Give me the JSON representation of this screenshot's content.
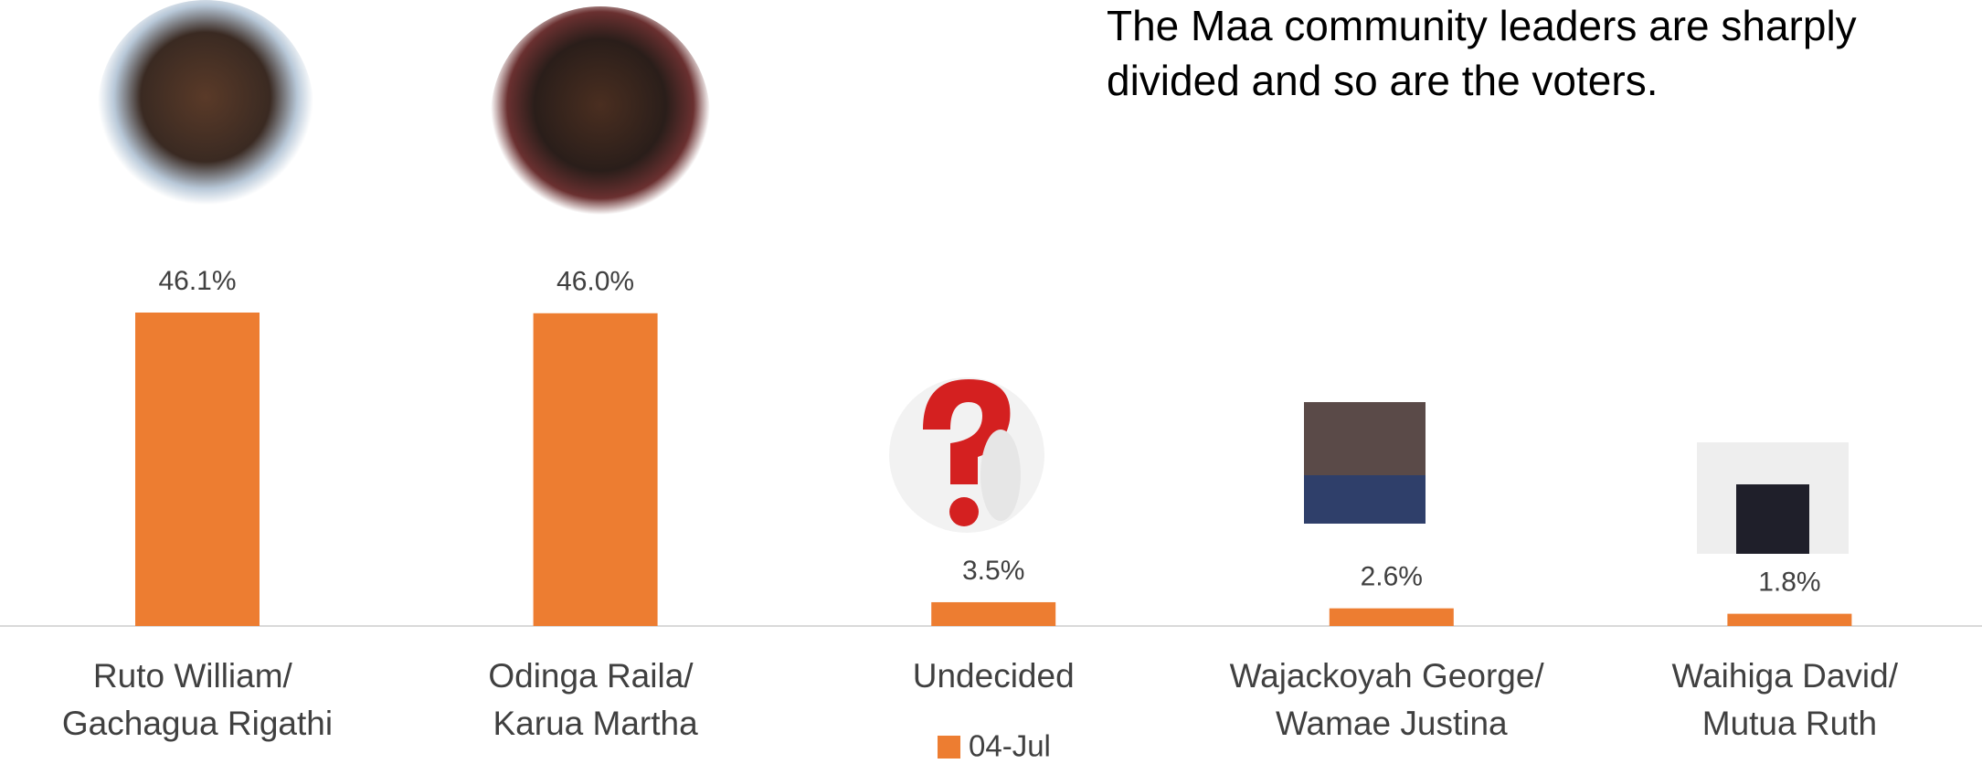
{
  "chart_data": {
    "type": "bar",
    "annotation": [
      "The Maa community leaders are sharply",
      "divided and so are the voters."
    ],
    "categories": [
      "Ruto William/ Gachagua Rigathi",
      "Odinga Raila/ Karua Martha",
      "Undecided",
      "Wajackoyah George/ Wamae Justina",
      "Waihiga David/ Mutua Ruth"
    ],
    "series": [
      {
        "name": "04-Jul",
        "color": "#ed7d31",
        "values": [
          46.1,
          46.0,
          3.5,
          2.6,
          1.8
        ],
        "value_labels": [
          "46.1%",
          "46.0%",
          "3.5%",
          "2.6%",
          "1.8%"
        ]
      }
    ],
    "legend": "bottom"
  }
}
